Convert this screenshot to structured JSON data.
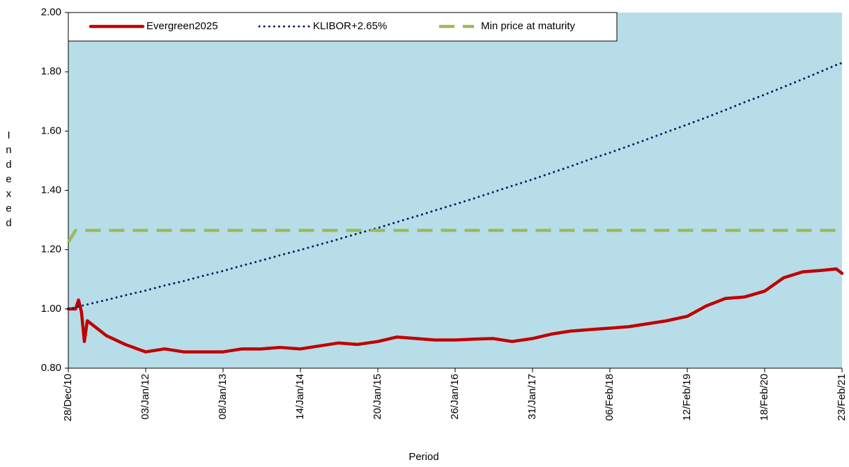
{
  "chart_data": {
    "type": "line",
    "x_label": "Period",
    "y_label": "Indexed",
    "x": [
      "28/Dec/10",
      "01/Feb/11",
      "15/Feb/11",
      "01/Mar/11",
      "15/Mar/11",
      "29/Mar/11",
      "28/Jun/11",
      "27/Sep/11",
      "03/Jan/12",
      "03/Apr/12",
      "03/Jul/12",
      "02/Oct/12",
      "08/Jan/13",
      "09/Apr/13",
      "09/Jul/13",
      "08/Oct/13",
      "14/Jan/14",
      "15/Apr/14",
      "15/Jul/14",
      "14/Oct/14",
      "20/Jan/15",
      "21/Apr/15",
      "21/Jul/15",
      "20/Oct/15",
      "26/Jan/16",
      "26/Apr/16",
      "26/Jul/16",
      "25/Oct/16",
      "31/Jan/17",
      "02/May/17",
      "01/Aug/17",
      "31/Oct/17",
      "06/Feb/18",
      "08/May/18",
      "07/Aug/18",
      "06/Nov/18",
      "12/Feb/19",
      "14/May/19",
      "13/Aug/19",
      "12/Nov/19",
      "18/Feb/20",
      "19/May/20",
      "18/Aug/20",
      "17/Nov/20",
      "26/Jan/21",
      "23/Feb/21"
    ],
    "series": [
      {
        "name": "Evergreen2025",
        "color": "#c00000",
        "style": "solid",
        "values": [
          1.0,
          1.0,
          1.03,
          0.99,
          0.89,
          0.96,
          0.91,
          0.88,
          0.855,
          0.865,
          0.855,
          0.855,
          0.855,
          0.865,
          0.865,
          0.87,
          0.865,
          0.875,
          0.885,
          0.88,
          0.89,
          0.905,
          0.9,
          0.895,
          0.895,
          0.898,
          0.9,
          0.89,
          0.9,
          0.915,
          0.925,
          0.93,
          0.935,
          0.94,
          0.95,
          0.96,
          0.975,
          1.01,
          1.035,
          1.04,
          1.06,
          1.105,
          1.125,
          1.13,
          1.135,
          1.12
        ]
      },
      {
        "name": "KLIBOR+2.65%",
        "color": "#002060",
        "style": "dotted",
        "values": [
          1.0,
          1.005,
          1.008,
          1.01,
          1.013,
          1.015,
          1.03,
          1.046,
          1.062,
          1.079,
          1.094,
          1.111,
          1.128,
          1.146,
          1.163,
          1.181,
          1.199,
          1.217,
          1.235,
          1.254,
          1.273,
          1.293,
          1.312,
          1.332,
          1.353,
          1.373,
          1.394,
          1.415,
          1.437,
          1.459,
          1.481,
          1.504,
          1.527,
          1.55,
          1.573,
          1.597,
          1.622,
          1.646,
          1.671,
          1.697,
          1.723,
          1.749,
          1.775,
          1.802,
          1.823,
          1.83
        ]
      },
      {
        "name": "Min price at maturity",
        "color": "#9bbb59",
        "style": "dashed",
        "values": [
          1.225,
          1.265,
          1.265,
          1.265,
          1.265,
          1.265,
          1.265,
          1.265,
          1.265,
          1.265,
          1.265,
          1.265,
          1.265,
          1.265,
          1.265,
          1.265,
          1.265,
          1.265,
          1.265,
          1.265,
          1.265,
          1.265,
          1.265,
          1.265,
          1.265,
          1.265,
          1.265,
          1.265,
          1.265,
          1.265,
          1.265,
          1.265,
          1.265,
          1.265,
          1.265,
          1.265,
          1.265,
          1.265,
          1.265,
          1.265,
          1.265,
          1.265,
          1.265,
          1.265,
          1.265,
          null
        ]
      }
    ],
    "xlim": [
      "28/Dec/10",
      "23/Feb/21"
    ],
    "xticks": [
      "28/Dec/10",
      "03/Jan/12",
      "08/Jan/13",
      "14/Jan/14",
      "20/Jan/15",
      "26/Jan/16",
      "31/Jan/17",
      "06/Feb/18",
      "12/Feb/19",
      "18/Feb/20",
      "23/Feb/21"
    ],
    "ylim": [
      0.8,
      2.0
    ],
    "yticks": [
      {
        "value": 0.8,
        "label": "0.80"
      },
      {
        "value": 1.0,
        "label": "1.00"
      },
      {
        "value": 1.2,
        "label": "1.20"
      },
      {
        "value": 1.4,
        "label": "1.40"
      },
      {
        "value": 1.6,
        "label": "1.60"
      },
      {
        "value": 1.8,
        "label": "1.80"
      },
      {
        "value": 2.0,
        "label": "2.00"
      }
    ],
    "plot_background": "#b7dde8",
    "legend": "top"
  }
}
